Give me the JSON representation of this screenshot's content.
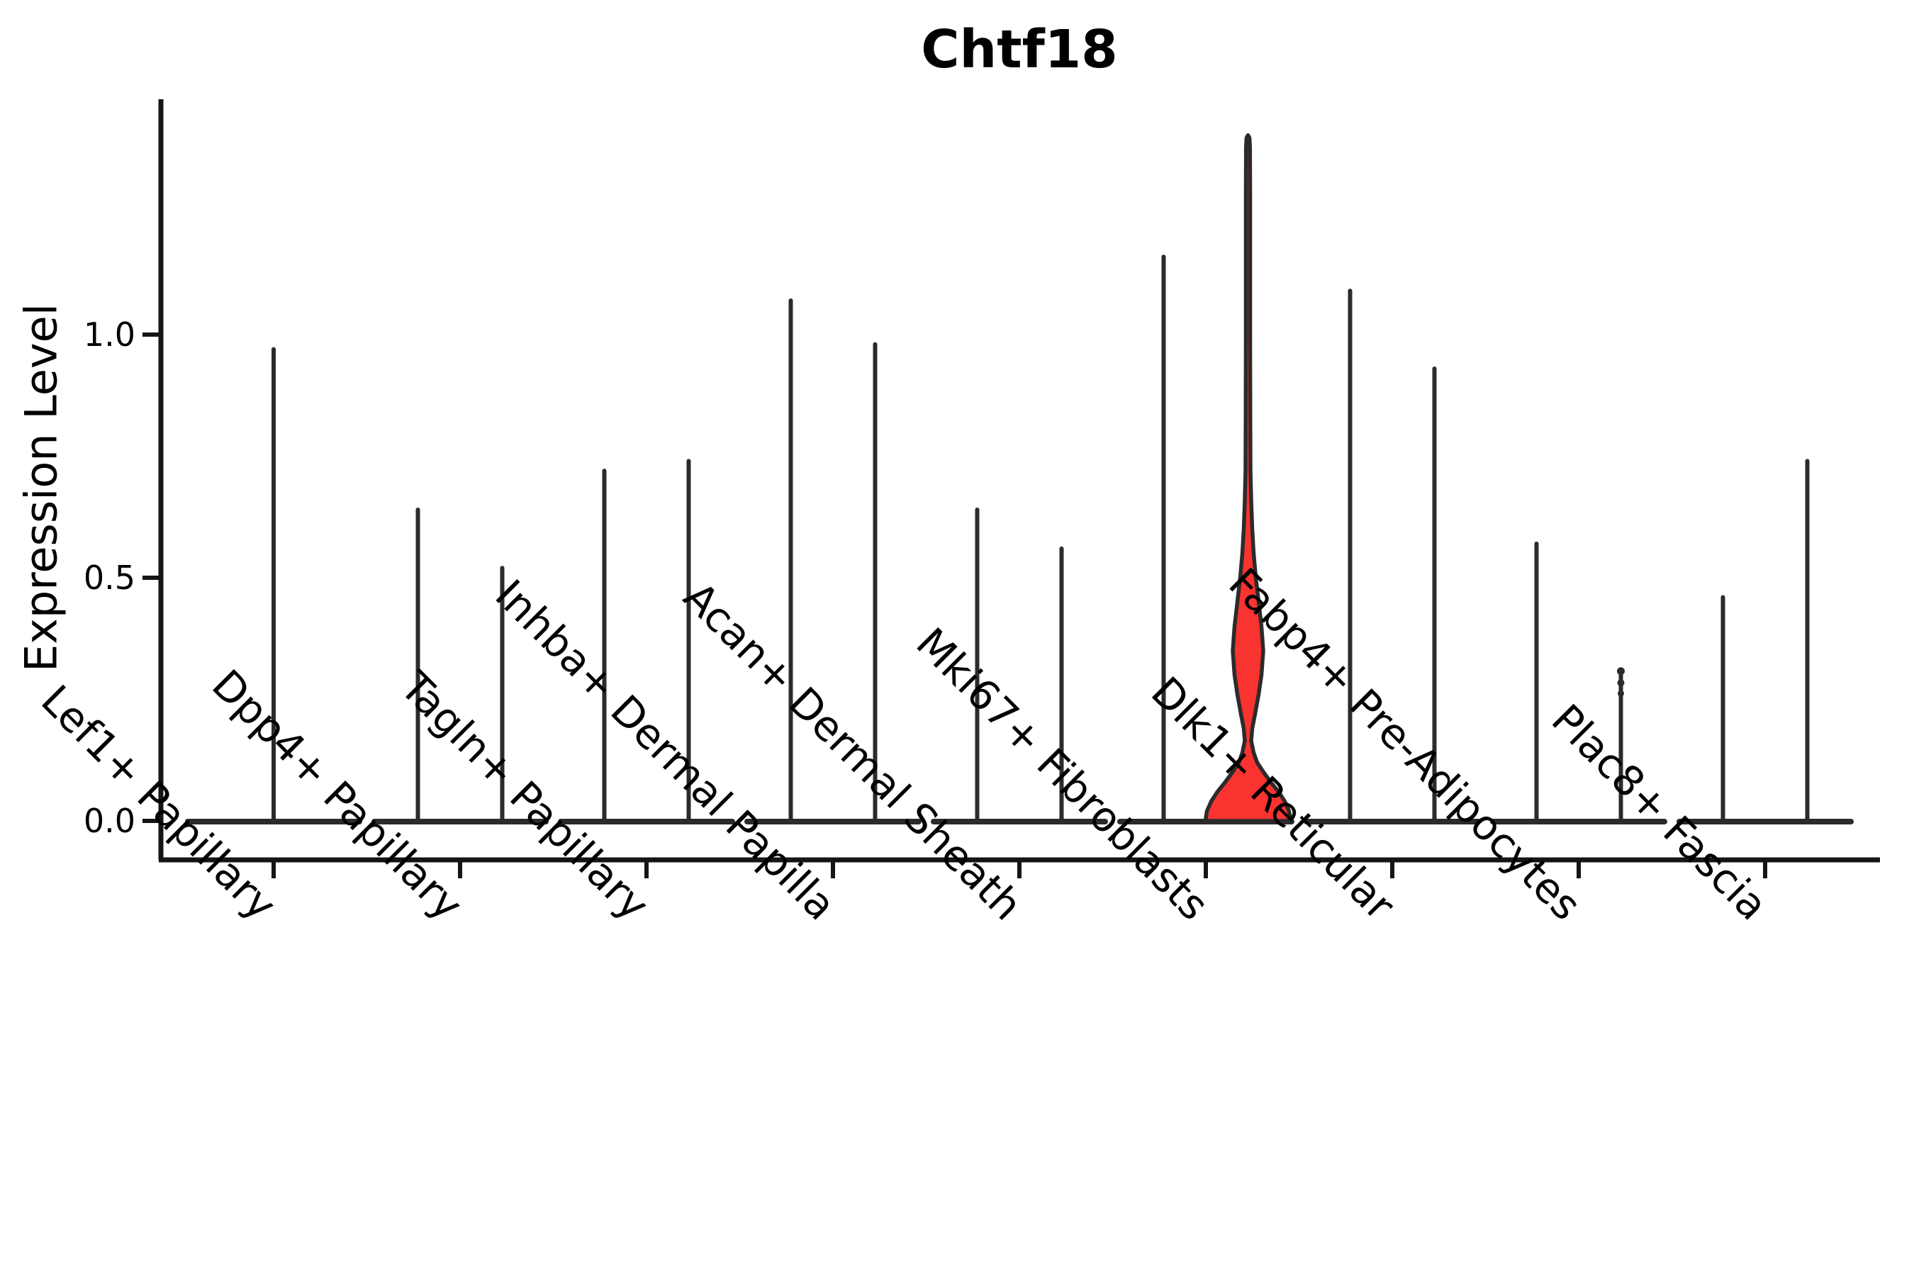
{
  "title": "Chtf18",
  "y_axis": {
    "label": "Expression Level",
    "tick_labels": [
      "0.0",
      "0.5",
      "1.0"
    ]
  },
  "chart_data": {
    "type": "violin",
    "title": "Chtf18",
    "xlabel": "",
    "ylabel": "Expression Level",
    "yticks": [
      0.0,
      0.5,
      1.0
    ],
    "ylim": [
      -0.08,
      1.48
    ],
    "grid": false,
    "legend": false,
    "style": "near-zero expression violins collapse to a wide flat base at 0 with thin vertical max-spikes; one highlighted red violin",
    "colors": {
      "violin_line": "#2b2b2b",
      "axis": "#151515",
      "text": "#000000",
      "highlight_fill": "#f93330"
    },
    "categories": [
      "Lef1+ Papillary",
      "Dpp4+ Papillary",
      "Tagln+ Papillary",
      "Inhba+ Dermal Papilla",
      "Acan+ Dermal Sheath",
      "Mki67+ Fibroblasts",
      "Dlk1+ Reticular",
      "Fabp4+ Pre-Adipocytes",
      "Plac8+ Fascia"
    ],
    "violins": [
      {
        "category": "Lef1+ Papillary",
        "spikes": [
          {
            "pos": "center",
            "max": 0.97
          }
        ]
      },
      {
        "category": "Dpp4+ Papillary",
        "spikes": [
          {
            "pos": "left",
            "max": 0.64
          },
          {
            "pos": "right",
            "max": 0.52
          }
        ]
      },
      {
        "category": "Tagln+ Papillary",
        "spikes": [
          {
            "pos": "left",
            "max": 0.72
          },
          {
            "pos": "right",
            "max": 0.74
          }
        ]
      },
      {
        "category": "Inhba+ Dermal Papilla",
        "spikes": [
          {
            "pos": "left",
            "max": 1.07
          },
          {
            "pos": "right",
            "max": 0.98
          }
        ]
      },
      {
        "category": "Acan+ Dermal Sheath",
        "spikes": [
          {
            "pos": "left",
            "max": 0.64
          },
          {
            "pos": "right",
            "max": 0.56
          }
        ]
      },
      {
        "category": "Mki67+ Fibroblasts",
        "spikes": [
          {
            "pos": "left",
            "max": 1.16
          }
        ],
        "highlight": {
          "pos": "right",
          "max": 1.41,
          "fill": "#f93330",
          "bulge_peak_value": 0.35,
          "neck_value": 0.165,
          "profile": [
            [
              0.0,
              60
            ],
            [
              0.02,
              58
            ],
            [
              0.04,
              52
            ],
            [
              0.06,
              43
            ],
            [
              0.08,
              32
            ],
            [
              0.1,
              22
            ],
            [
              0.12,
              13
            ],
            [
              0.14,
              8
            ],
            [
              0.165,
              4.5
            ],
            [
              0.19,
              6
            ],
            [
              0.22,
              10
            ],
            [
              0.26,
              15
            ],
            [
              0.3,
              19
            ],
            [
              0.35,
              21.5
            ],
            [
              0.4,
              19
            ],
            [
              0.45,
              15
            ],
            [
              0.5,
              11
            ],
            [
              0.55,
              8
            ],
            [
              0.6,
              6
            ],
            [
              0.66,
              4.5
            ],
            [
              0.72,
              3.5
            ],
            [
              0.85,
              3.2
            ],
            [
              1.0,
              3
            ],
            [
              1.15,
              3
            ],
            [
              1.3,
              3
            ],
            [
              1.385,
              2.8
            ],
            [
              1.405,
              2
            ],
            [
              1.41,
              0
            ]
          ]
        }
      },
      {
        "category": "Dlk1+ Reticular",
        "spikes": [
          {
            "pos": "left",
            "max": 1.09
          },
          {
            "pos": "right",
            "max": 0.93
          }
        ]
      },
      {
        "category": "Fabp4+ Pre-Adipocytes",
        "spikes": [
          {
            "pos": "left",
            "max": 0.57
          },
          {
            "pos": "right",
            "max": 0.31,
            "beads": [
              0.308,
              0.284,
              0.262
            ]
          }
        ]
      },
      {
        "category": "Plac8+ Fascia",
        "spikes": [
          {
            "pos": "left",
            "max": 0.46
          },
          {
            "pos": "right",
            "max": 0.74
          }
        ]
      }
    ]
  }
}
